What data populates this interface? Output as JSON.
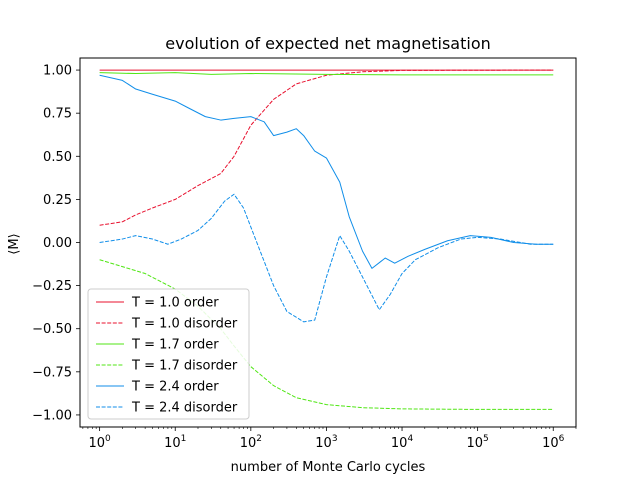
{
  "chart_data": {
    "type": "line",
    "title": "evolution of expected net magnetisation",
    "xlabel": "number of Monte Carlo cycles",
    "ylabel": "⟨M⟩",
    "xscale": "log",
    "xlim": [
      0.55,
      2000000
    ],
    "ylim": [
      -1.07,
      1.07
    ],
    "x_ticks": [
      {
        "value": 1,
        "mantissa": "10",
        "exp": "0"
      },
      {
        "value": 10,
        "mantissa": "10",
        "exp": "1"
      },
      {
        "value": 100,
        "mantissa": "10",
        "exp": "2"
      },
      {
        "value": 1000,
        "mantissa": "10",
        "exp": "3"
      },
      {
        "value": 10000,
        "mantissa": "10",
        "exp": "4"
      },
      {
        "value": 100000,
        "mantissa": "10",
        "exp": "5"
      },
      {
        "value": 1000000,
        "mantissa": "10",
        "exp": "6"
      }
    ],
    "y_ticks": [
      {
        "value": 1.0,
        "label": "1.00"
      },
      {
        "value": 0.75,
        "label": "0.75"
      },
      {
        "value": 0.5,
        "label": "0.50"
      },
      {
        "value": 0.25,
        "label": "0.25"
      },
      {
        "value": 0.0,
        "label": "0.00"
      },
      {
        "value": -0.25,
        "label": "−0.25"
      },
      {
        "value": -0.5,
        "label": "−0.50"
      },
      {
        "value": -0.75,
        "label": "−0.75"
      },
      {
        "value": -1.0,
        "label": "−1.00"
      }
    ],
    "grid": false,
    "legend_position": "lower-left",
    "series": [
      {
        "name": "T = 1.0 order",
        "color": "#e8102e",
        "dash": "solid",
        "points": [
          [
            1,
            1.0
          ],
          [
            1000000,
            1.0
          ]
        ]
      },
      {
        "name": "T = 1.0 disorder",
        "color": "#e8102e",
        "dash": "dashed",
        "points": [
          [
            1,
            0.1
          ],
          [
            2,
            0.12
          ],
          [
            3,
            0.16
          ],
          [
            5,
            0.2
          ],
          [
            10,
            0.25
          ],
          [
            20,
            0.33
          ],
          [
            40,
            0.4
          ],
          [
            60,
            0.5
          ],
          [
            100,
            0.68
          ],
          [
            200,
            0.83
          ],
          [
            400,
            0.92
          ],
          [
            1000,
            0.97
          ],
          [
            3000,
            0.99
          ],
          [
            10000,
            0.998
          ],
          [
            1000000,
            1.0
          ]
        ]
      },
      {
        "name": "T = 1.7 order",
        "color": "#50e614",
        "dash": "solid",
        "points": [
          [
            1,
            0.985
          ],
          [
            3,
            0.98
          ],
          [
            10,
            0.985
          ],
          [
            30,
            0.975
          ],
          [
            100,
            0.98
          ],
          [
            1000,
            0.975
          ],
          [
            10000,
            0.972
          ],
          [
            1000000,
            0.972
          ]
        ]
      },
      {
        "name": "T = 1.7 disorder",
        "color": "#50e614",
        "dash": "dashed",
        "points": [
          [
            1,
            -0.1
          ],
          [
            2,
            -0.14
          ],
          [
            4,
            -0.18
          ],
          [
            10,
            -0.27
          ],
          [
            20,
            -0.37
          ],
          [
            40,
            -0.5
          ],
          [
            60,
            -0.6
          ],
          [
            100,
            -0.72
          ],
          [
            200,
            -0.83
          ],
          [
            400,
            -0.9
          ],
          [
            1000,
            -0.94
          ],
          [
            3000,
            -0.958
          ],
          [
            10000,
            -0.965
          ],
          [
            100000,
            -0.968
          ],
          [
            1000000,
            -0.968
          ]
        ]
      },
      {
        "name": "T = 2.4 order",
        "color": "#108ee9",
        "dash": "solid",
        "points": [
          [
            1,
            0.97
          ],
          [
            2,
            0.94
          ],
          [
            3,
            0.89
          ],
          [
            5,
            0.86
          ],
          [
            10,
            0.82
          ],
          [
            15,
            0.78
          ],
          [
            25,
            0.73
          ],
          [
            40,
            0.71
          ],
          [
            60,
            0.72
          ],
          [
            100,
            0.73
          ],
          [
            150,
            0.7
          ],
          [
            200,
            0.62
          ],
          [
            300,
            0.64
          ],
          [
            400,
            0.66
          ],
          [
            500,
            0.62
          ],
          [
            700,
            0.53
          ],
          [
            1000,
            0.49
          ],
          [
            1500,
            0.35
          ],
          [
            2000,
            0.15
          ],
          [
            3000,
            -0.05
          ],
          [
            4000,
            -0.15
          ],
          [
            6000,
            -0.09
          ],
          [
            8000,
            -0.12
          ],
          [
            12000,
            -0.08
          ],
          [
            20000,
            -0.04
          ],
          [
            40000,
            0.01
          ],
          [
            80000,
            0.04
          ],
          [
            150000,
            0.03
          ],
          [
            300000,
            0.0
          ],
          [
            600000,
            -0.01
          ],
          [
            1000000,
            -0.01
          ]
        ]
      },
      {
        "name": "T = 2.4 disorder",
        "color": "#108ee9",
        "dash": "dashed",
        "points": [
          [
            1,
            0.0
          ],
          [
            2,
            0.02
          ],
          [
            3,
            0.04
          ],
          [
            5,
            0.02
          ],
          [
            8,
            -0.01
          ],
          [
            12,
            0.02
          ],
          [
            20,
            0.07
          ],
          [
            30,
            0.14
          ],
          [
            45,
            0.24
          ],
          [
            60,
            0.28
          ],
          [
            80,
            0.2
          ],
          [
            120,
            0.0
          ],
          [
            200,
            -0.25
          ],
          [
            300,
            -0.4
          ],
          [
            500,
            -0.46
          ],
          [
            700,
            -0.45
          ],
          [
            1000,
            -0.2
          ],
          [
            1500,
            0.04
          ],
          [
            2000,
            -0.05
          ],
          [
            3000,
            -0.2
          ],
          [
            5000,
            -0.39
          ],
          [
            7000,
            -0.3
          ],
          [
            10000,
            -0.18
          ],
          [
            15000,
            -0.1
          ],
          [
            30000,
            -0.03
          ],
          [
            60000,
            0.02
          ],
          [
            100000,
            0.03
          ],
          [
            200000,
            0.02
          ],
          [
            500000,
            -0.01
          ],
          [
            1000000,
            -0.01
          ]
        ]
      }
    ]
  }
}
